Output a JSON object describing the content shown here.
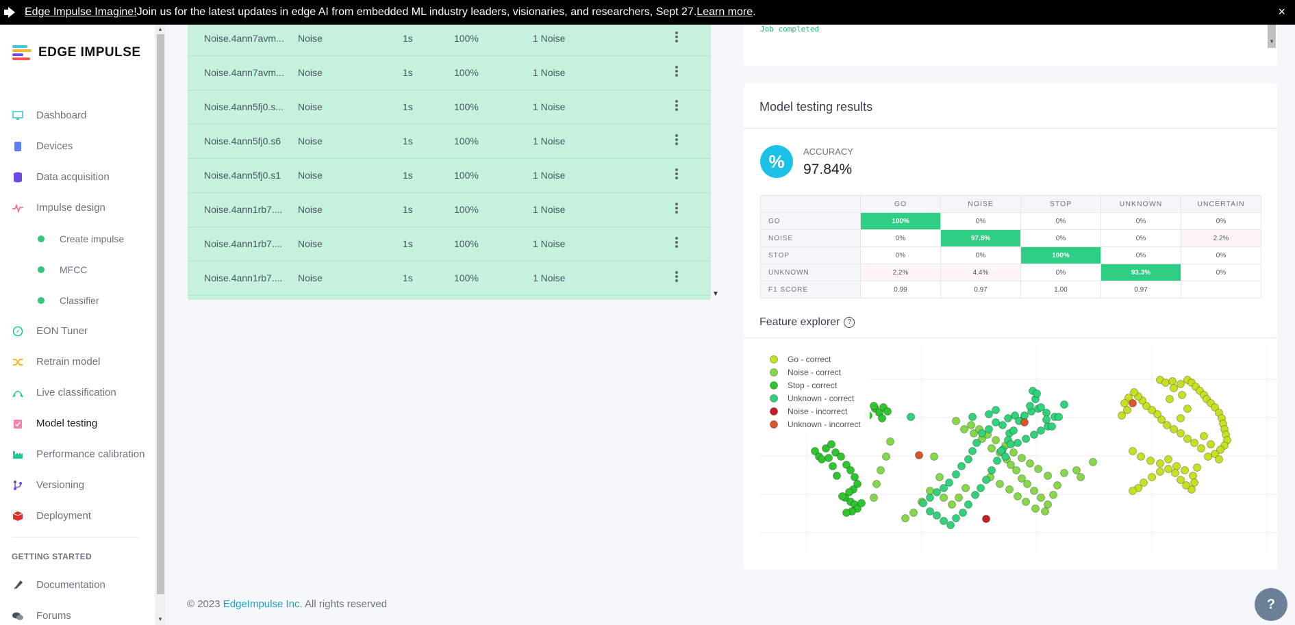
{
  "banner": {
    "strong": "Edge Impulse Imagine!",
    "text": " Join us for the latest updates in edge AI from embedded ML industry leaders, visionaries, and researchers, Sept 27. ",
    "link": "Learn more",
    "end": ".",
    "close": "×"
  },
  "logo": {
    "text": "EDGE IMPULSE"
  },
  "nav": {
    "items": [
      {
        "label": "Dashboard",
        "icon": "monitor-icon"
      },
      {
        "label": "Devices",
        "icon": "chip-icon"
      },
      {
        "label": "Data acquisition",
        "icon": "database-icon"
      },
      {
        "label": "Impulse design",
        "icon": "pulse-icon"
      }
    ],
    "sub": [
      {
        "label": "Create impulse"
      },
      {
        "label": "MFCC"
      },
      {
        "label": "Classifier"
      }
    ],
    "items2": [
      {
        "label": "EON Tuner",
        "icon": "compass-icon"
      },
      {
        "label": "Retrain model",
        "icon": "shuffle-icon"
      },
      {
        "label": "Live classification",
        "icon": "live-icon"
      },
      {
        "label": "Model testing",
        "icon": "clipboard-check-icon"
      },
      {
        "label": "Performance calibration",
        "icon": "factory-icon"
      },
      {
        "label": "Versioning",
        "icon": "branch-icon"
      },
      {
        "label": "Deployment",
        "icon": "box-icon"
      }
    ],
    "getting_started": "GETTING STARTED",
    "items3": [
      {
        "label": "Documentation",
        "icon": "rocket-icon"
      },
      {
        "label": "Forums",
        "icon": "chat-icon"
      }
    ]
  },
  "samples": [
    {
      "name": "Noise.4ann7avm...",
      "label": "Noise",
      "length": "1s",
      "accuracy": "100%",
      "result": "1 Noise"
    },
    {
      "name": "Noise.4ann7avm...",
      "label": "Noise",
      "length": "1s",
      "accuracy": "100%",
      "result": "1 Noise"
    },
    {
      "name": "Noise.4ann5fj0.s...",
      "label": "Noise",
      "length": "1s",
      "accuracy": "100%",
      "result": "1 Noise"
    },
    {
      "name": "Noise.4ann5fj0.s6",
      "label": "Noise",
      "length": "1s",
      "accuracy": "100%",
      "result": "1 Noise"
    },
    {
      "name": "Noise.4ann5fj0.s1",
      "label": "Noise",
      "length": "1s",
      "accuracy": "100%",
      "result": "1 Noise"
    },
    {
      "name": "Noise.4ann1rb7....",
      "label": "Noise",
      "length": "1s",
      "accuracy": "100%",
      "result": "1 Noise"
    },
    {
      "name": "Noise.4ann1rb7....",
      "label": "Noise",
      "length": "1s",
      "accuracy": "100%",
      "result": "1 Noise"
    },
    {
      "name": "Noise.4ann1rb7....",
      "label": "Noise",
      "length": "1s",
      "accuracy": "100%",
      "result": "1 Noise"
    }
  ],
  "job": {
    "text": "Job completed"
  },
  "model_testing": {
    "title": "Model testing results",
    "accuracy_label": "ACCURACY",
    "accuracy_value": "97.84%",
    "accuracy_icon": "%",
    "columns": [
      "GO",
      "NOISE",
      "STOP",
      "UNKNOWN",
      "UNCERTAIN"
    ],
    "rows": [
      {
        "label": "GO",
        "cells": [
          "100%",
          "0%",
          "0%",
          "0%",
          "0%"
        ],
        "hi": 0
      },
      {
        "label": "NOISE",
        "cells": [
          "0%",
          "97.8%",
          "0%",
          "0%",
          "2.2%"
        ],
        "hi": 1
      },
      {
        "label": "STOP",
        "cells": [
          "0%",
          "0%",
          "100%",
          "0%",
          "0%"
        ],
        "hi": 2
      },
      {
        "label": "UNKNOWN",
        "cells": [
          "2.2%",
          "4.4%",
          "0%",
          "93.3%",
          "0%"
        ],
        "hi": 3
      },
      {
        "label": "F1 SCORE",
        "cells": [
          "0.99",
          "0.97",
          "1.00",
          "0.97",
          ""
        ],
        "hi": -1
      }
    ],
    "feature_explorer_title": "Feature explorer",
    "help": "?"
  },
  "chart_data": {
    "type": "scatter",
    "legend_position": "top-left",
    "series": [
      {
        "name": "Go - correct",
        "color": "#c7e021",
        "points": [
          [
            560,
            18
          ],
          [
            568,
            22
          ],
          [
            578,
            20
          ],
          [
            590,
            24
          ],
          [
            600,
            18
          ],
          [
            606,
            22
          ],
          [
            612,
            28
          ],
          [
            618,
            34
          ],
          [
            624,
            40
          ],
          [
            628,
            46
          ],
          [
            634,
            52
          ],
          [
            640,
            58
          ],
          [
            646,
            66
          ],
          [
            650,
            74
          ],
          [
            652,
            82
          ],
          [
            654,
            90
          ],
          [
            656,
            98
          ],
          [
            658,
            106
          ],
          [
            654,
            114
          ],
          [
            648,
            120
          ],
          [
            640,
            126
          ],
          [
            630,
            130
          ],
          [
            620,
            118
          ],
          [
            610,
            110
          ],
          [
            600,
            104
          ],
          [
            590,
            96
          ],
          [
            580,
            90
          ],
          [
            570,
            84
          ],
          [
            562,
            76
          ],
          [
            556,
            68
          ],
          [
            548,
            62
          ],
          [
            540,
            56
          ],
          [
            534,
            48
          ],
          [
            528,
            42
          ],
          [
            522,
            36
          ],
          [
            514,
            44
          ],
          [
            508,
            52
          ],
          [
            520,
            122
          ],
          [
            532,
            130
          ],
          [
            546,
            136
          ],
          [
            560,
            140
          ],
          [
            572,
            134
          ],
          [
            584,
            144
          ],
          [
            596,
            150
          ],
          [
            608,
            158
          ],
          [
            610,
            168
          ],
          [
            606,
            178
          ],
          [
            598,
            172
          ],
          [
            590,
            164
          ],
          [
            582,
            154
          ],
          [
            572,
            148
          ],
          [
            560,
            152
          ],
          [
            548,
            160
          ],
          [
            536,
            168
          ],
          [
            528,
            176
          ],
          [
            520,
            180
          ],
          [
            512,
            62
          ],
          [
            504,
            70
          ],
          [
            580,
            30
          ],
          [
            592,
            40
          ],
          [
            600,
            60
          ],
          [
            590,
            74
          ],
          [
            624,
            100
          ],
          [
            634,
            112
          ],
          [
            646,
            134
          ],
          [
            614,
            146
          ],
          [
            574,
            46
          ]
        ]
      },
      {
        "name": "Noise - correct",
        "color": "#86d84a",
        "points": [
          [
            262,
            78
          ],
          [
            274,
            90
          ],
          [
            288,
            96
          ],
          [
            300,
            104
          ],
          [
            314,
            118
          ],
          [
            326,
            124
          ],
          [
            336,
            134
          ],
          [
            342,
            142
          ],
          [
            350,
            150
          ],
          [
            358,
            162
          ],
          [
            366,
            170
          ],
          [
            376,
            180
          ],
          [
            386,
            190
          ],
          [
            396,
            200
          ],
          [
            404,
            186
          ],
          [
            410,
            172
          ],
          [
            396,
            158
          ],
          [
            382,
            148
          ],
          [
            370,
            140
          ],
          [
            358,
            132
          ],
          [
            346,
            124
          ],
          [
            334,
            114
          ],
          [
            320,
            106
          ],
          [
            308,
            98
          ],
          [
            296,
            90
          ],
          [
            284,
            84
          ],
          [
            166,
            108
          ],
          [
            160,
            130
          ],
          [
            152,
            150
          ],
          [
            146,
            170
          ],
          [
            142,
            190
          ],
          [
            230,
            130
          ],
          [
            238,
            160
          ],
          [
            224,
            180
          ],
          [
            212,
            196
          ],
          [
            200,
            212
          ],
          [
            188,
            220
          ],
          [
            244,
            190
          ],
          [
            256,
            200
          ],
          [
            266,
            190
          ],
          [
            276,
            176
          ],
          [
            312,
            160
          ],
          [
            326,
            170
          ],
          [
            340,
            178
          ],
          [
            352,
            188
          ],
          [
            364,
            196
          ],
          [
            378,
            206
          ],
          [
            392,
            210
          ],
          [
            420,
            154
          ],
          [
            438,
            150
          ],
          [
            444,
            160
          ],
          [
            462,
            138
          ]
        ]
      },
      {
        "name": "Stop - correct",
        "color": "#2fc52f",
        "points": [
          [
            56,
            122
          ],
          [
            62,
            130
          ],
          [
            66,
            134
          ],
          [
            72,
            118
          ],
          [
            80,
            112
          ],
          [
            86,
            124
          ],
          [
            94,
            130
          ],
          [
            102,
            142
          ],
          [
            108,
            150
          ],
          [
            114,
            160
          ],
          [
            118,
            170
          ],
          [
            112,
            178
          ],
          [
            106,
            182
          ],
          [
            100,
            190
          ],
          [
            108,
            196
          ],
          [
            114,
            200
          ],
          [
            118,
            206
          ],
          [
            110,
            210
          ],
          [
            102,
            212
          ],
          [
            96,
            188
          ],
          [
            88,
            158
          ],
          [
            82,
            144
          ],
          [
            76,
            132
          ],
          [
            124,
            198
          ],
          [
            134,
            70
          ],
          [
            144,
            60
          ],
          [
            150,
            66
          ],
          [
            156,
            58
          ],
          [
            162,
            64
          ],
          [
            154,
            74
          ],
          [
            142,
            56
          ]
        ]
      },
      {
        "name": "Unknown - correct",
        "color": "#30d27a",
        "points": [
          [
            196,
            72
          ],
          [
            286,
            72
          ],
          [
            310,
            68
          ],
          [
            320,
            62
          ],
          [
            338,
            74
          ],
          [
            348,
            70
          ],
          [
            360,
            76
          ],
          [
            372,
            64
          ],
          [
            382,
            60
          ],
          [
            394,
            66
          ],
          [
            406,
            72
          ],
          [
            396,
            86
          ],
          [
            386,
            92
          ],
          [
            376,
            98
          ],
          [
            364,
            104
          ],
          [
            352,
            110
          ],
          [
            340,
            96
          ],
          [
            330,
            84
          ],
          [
            320,
            80
          ],
          [
            310,
            90
          ],
          [
            300,
            96
          ],
          [
            292,
            110
          ],
          [
            286,
            122
          ],
          [
            280,
            134
          ],
          [
            270,
            144
          ],
          [
            262,
            156
          ],
          [
            252,
            168
          ],
          [
            244,
            176
          ],
          [
            234,
            182
          ],
          [
            224,
            190
          ],
          [
            214,
            198
          ],
          [
            224,
            210
          ],
          [
            234,
            216
          ],
          [
            244,
            224
          ],
          [
            254,
            230
          ],
          [
            262,
            220
          ],
          [
            272,
            212
          ],
          [
            280,
            200
          ],
          [
            290,
            186
          ],
          [
            298,
            176
          ],
          [
            306,
            164
          ],
          [
            314,
            150
          ],
          [
            322,
            136
          ],
          [
            330,
            120
          ],
          [
            338,
            106
          ],
          [
            346,
            92
          ],
          [
            354,
            78
          ],
          [
            362,
            70
          ],
          [
            370,
            56
          ],
          [
            378,
            46
          ],
          [
            386,
            58
          ],
          [
            394,
            76
          ],
          [
            402,
            86
          ],
          [
            412,
            72
          ],
          [
            420,
            54
          ],
          [
            374,
            34
          ],
          [
            380,
            38
          ],
          [
            328,
            122
          ],
          [
            334,
            130
          ],
          [
            342,
            112
          ]
        ]
      },
      {
        "name": "Noise - incorrect",
        "color": "#c41e2a",
        "points": [
          [
            306,
            221
          ]
        ]
      },
      {
        "name": "Unknown - incorrect",
        "color": "#d9552d",
        "points": [
          [
            208,
            128
          ],
          [
            362,
            80
          ],
          [
            520,
            52
          ]
        ]
      }
    ]
  },
  "footer": {
    "copyright": "© 2023 ",
    "company": "EdgeImpulse Inc.",
    "rights": " All rights reserved"
  },
  "help_button": "?"
}
